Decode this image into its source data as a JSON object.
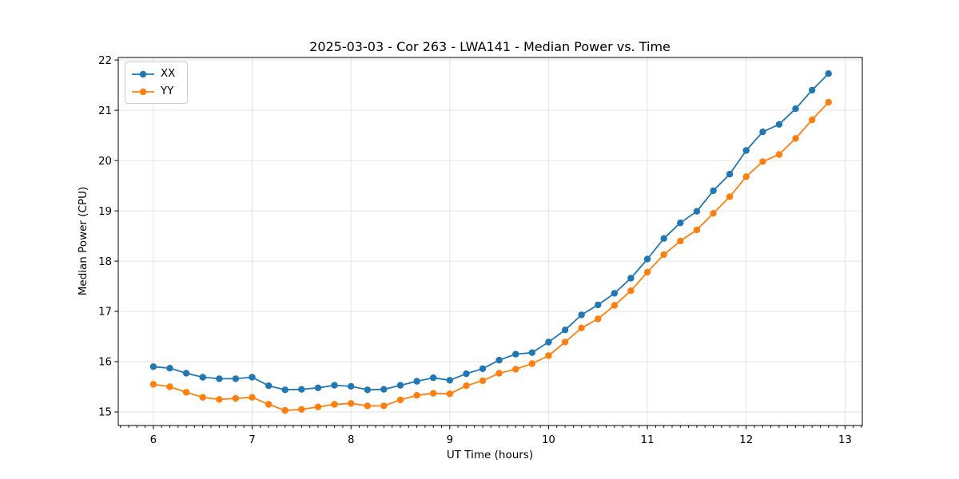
{
  "chart_data": {
    "type": "line",
    "title": "2025-03-03 - Cor 263 - LWA141 - Median Power vs. Time",
    "xlabel": "UT Time (hours)",
    "ylabel": "Median Power (CPU)",
    "xlim": [
      5.645,
      13.175
    ],
    "ylim": [
      14.73,
      22.05
    ],
    "x_major_ticks": [
      6,
      7,
      8,
      9,
      10,
      11,
      12,
      13
    ],
    "y_major_ticks": [
      15,
      16,
      17,
      18,
      19,
      20,
      21,
      22
    ],
    "x_minor_step": 0.08333,
    "grid": "major-both",
    "legend_position": "upper-left",
    "x": [
      6.0,
      6.167,
      6.333,
      6.5,
      6.667,
      6.833,
      7.0,
      7.167,
      7.333,
      7.5,
      7.667,
      7.833,
      8.0,
      8.167,
      8.333,
      8.5,
      8.667,
      8.833,
      9.0,
      9.167,
      9.333,
      9.5,
      9.667,
      9.833,
      10.0,
      10.167,
      10.333,
      10.5,
      10.667,
      10.833,
      11.0,
      11.167,
      11.333,
      11.5,
      11.667,
      11.833,
      12.0,
      12.167,
      12.333,
      12.5,
      12.667,
      12.833
    ],
    "series": [
      {
        "name": "XX",
        "color": "#1f77b4",
        "marker": "circle",
        "values": [
          15.9,
          15.87,
          15.77,
          15.69,
          15.66,
          15.66,
          15.69,
          15.52,
          15.44,
          15.45,
          15.48,
          15.53,
          15.51,
          15.44,
          15.45,
          15.53,
          15.61,
          15.68,
          15.63,
          15.76,
          15.86,
          16.03,
          16.15,
          16.18,
          16.39,
          16.63,
          16.93,
          17.13,
          17.36,
          17.66,
          18.04,
          18.45,
          18.76,
          18.99,
          19.4,
          19.73,
          20.2,
          20.57,
          20.72,
          21.03,
          21.4,
          21.73
        ]
      },
      {
        "name": "YY",
        "color": "#ff7f0e",
        "marker": "circle",
        "values": [
          15.55,
          15.5,
          15.39,
          15.29,
          15.25,
          15.27,
          15.29,
          15.15,
          15.03,
          15.05,
          15.1,
          15.15,
          15.17,
          15.12,
          15.12,
          15.24,
          15.33,
          15.37,
          15.36,
          15.52,
          15.62,
          15.77,
          15.85,
          15.96,
          16.12,
          16.39,
          16.67,
          16.85,
          17.12,
          17.41,
          17.78,
          18.13,
          18.4,
          18.62,
          18.95,
          19.28,
          19.68,
          19.98,
          20.12,
          20.44,
          20.81,
          21.16
        ]
      }
    ]
  },
  "colors": {
    "background": "#ffffff",
    "spine": "#000000",
    "grid": "#b0b0b0",
    "series_xx": "#1f77b4",
    "series_yy": "#ff7f0e",
    "legend_border": "#cccccc"
  }
}
